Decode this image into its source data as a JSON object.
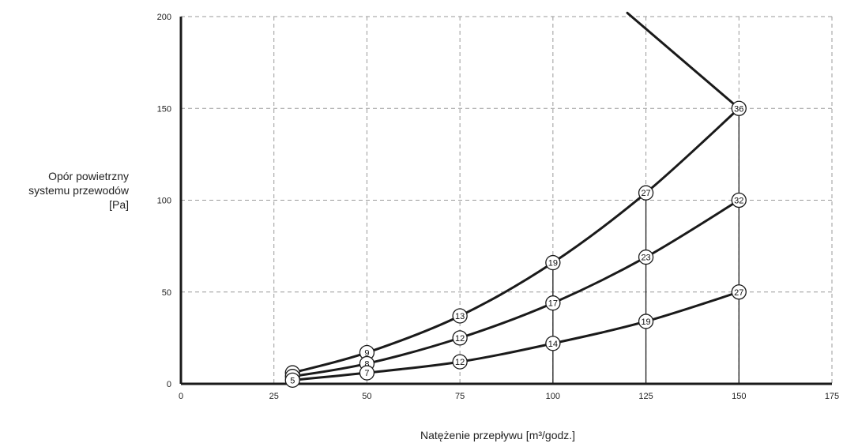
{
  "chart_data": {
    "type": "line",
    "xlabel": "Natężenie przepływu [m³/godz.]",
    "ylabel_lines": [
      "Opór powietrzny",
      "systemu przewodów",
      "[Pa]"
    ],
    "xlim": [
      0,
      175
    ],
    "ylim": [
      0,
      200
    ],
    "x_ticks": [
      "0",
      "25",
      "50",
      "75",
      "100",
      "125",
      "150",
      "175"
    ],
    "y_ticks": [
      "0",
      "50",
      "100",
      "150",
      "200"
    ],
    "grid": true,
    "series": [
      {
        "points": [
          [
            30,
            6
          ],
          [
            50,
            17
          ],
          [
            75,
            37
          ],
          [
            100,
            66
          ],
          [
            125,
            104
          ],
          [
            150,
            150
          ]
        ],
        "labels": [
          "6",
          "9",
          "13",
          "19",
          "27",
          "36"
        ]
      },
      {
        "points": [
          [
            30,
            4
          ],
          [
            50,
            11
          ],
          [
            75,
            25
          ],
          [
            100,
            44
          ],
          [
            125,
            69
          ],
          [
            150,
            100
          ]
        ],
        "labels": [
          "",
          "8",
          "12",
          "17",
          "23",
          "32"
        ]
      },
      {
        "points": [
          [
            30,
            2
          ],
          [
            50,
            6
          ],
          [
            75,
            12
          ],
          [
            100,
            22
          ],
          [
            125,
            34
          ],
          [
            150,
            50
          ]
        ],
        "labels": [
          "5",
          "7",
          "12",
          "14",
          "19",
          "27"
        ]
      },
      {
        "points": [
          [
            120,
            202
          ],
          [
            150,
            150
          ]
        ],
        "labels": []
      }
    ],
    "drop_lines_x": [
      100,
      125,
      150
    ]
  }
}
